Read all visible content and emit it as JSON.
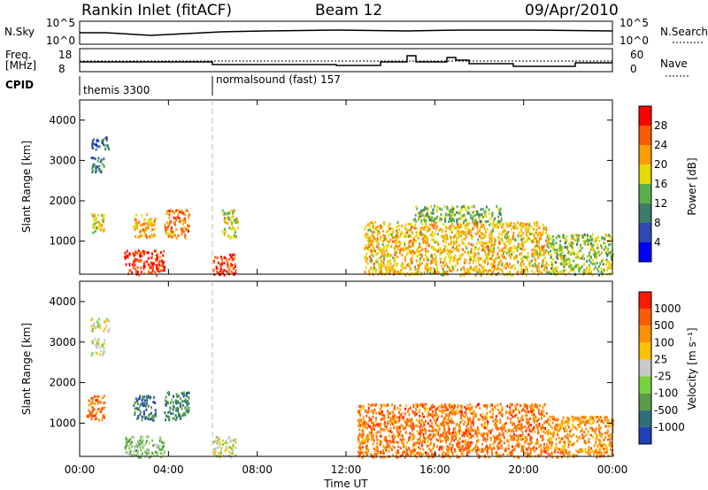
{
  "header": {
    "title": "Rankin Inlet (fitACF)",
    "beam": "Beam 12",
    "date": "09/Apr/2010"
  },
  "top_panels": {
    "nsky_label": "N.Sky",
    "nsearch_label": "N.Search",
    "nsky_ticks": [
      "10^5",
      "10^0"
    ],
    "nsearch_ticks": [
      "10^5",
      "10^0"
    ],
    "freq_label_line1": "Freq.",
    "freq_label_line2": "[MHz]",
    "freq_ticks": [
      "18",
      "8"
    ],
    "nave_label": "Nave",
    "nave_ticks": [
      "60",
      "0"
    ],
    "cpid_label": "CPID",
    "cpid_modes": [
      {
        "label": "themis 3300",
        "start_hour": 0
      },
      {
        "label": "normalsound (fast) 157",
        "start_hour": 6
      }
    ]
  },
  "chart_data": [
    {
      "type": "heatmap",
      "name": "power",
      "xlabel": "Time UT",
      "ylabel": "Slant Range [km]",
      "xlim": [
        0,
        24
      ],
      "ylim": [
        180,
        4500
      ],
      "x_ticks": [
        "00:00",
        "04:00",
        "08:00",
        "12:00",
        "16:00",
        "20:00",
        "00:00"
      ],
      "y_ticks": [
        1000,
        2000,
        3000,
        4000
      ],
      "colorbar_label": "Power [dB]",
      "colorbar_ticks": [
        "4",
        "8",
        "12",
        "16",
        "20",
        "24",
        "28"
      ],
      "colors": [
        "#0000ff",
        "#2b4bb0",
        "#3c7a6a",
        "#58b04a",
        "#e6d800",
        "#ff9d00",
        "#ff5a00",
        "#ff0000"
      ],
      "regions": [
        {
          "t": [
            2.0,
            3.8
          ],
          "r": [
            180,
            800
          ],
          "level": 6.5
        },
        {
          "t": [
            6.0,
            7.0
          ],
          "r": [
            180,
            700
          ],
          "level": 6.5
        },
        {
          "t": [
            0.5,
            1.1
          ],
          "r": [
            1200,
            1700
          ],
          "level": 4
        },
        {
          "t": [
            0.5,
            1.1
          ],
          "r": [
            2700,
            3100
          ],
          "level": 2
        },
        {
          "t": [
            0.5,
            1.3
          ],
          "r": [
            3300,
            3600
          ],
          "level": 1.5
        },
        {
          "t": [
            2.4,
            3.4
          ],
          "r": [
            1100,
            1700
          ],
          "level": 5
        },
        {
          "t": [
            3.8,
            4.9
          ],
          "r": [
            1100,
            1800
          ],
          "level": 5.5
        },
        {
          "t": [
            6.4,
            7.1
          ],
          "r": [
            1100,
            1800
          ],
          "level": 4
        },
        {
          "t": [
            12.8,
            21.0
          ],
          "r": [
            180,
            1500
          ],
          "level": 4.5
        },
        {
          "t": [
            21.0,
            24.0
          ],
          "r": [
            180,
            1200
          ],
          "level": 3.5
        },
        {
          "t": [
            15.0,
            19.0
          ],
          "r": [
            1500,
            1900
          ],
          "level": 3
        }
      ]
    },
    {
      "type": "heatmap",
      "name": "velocity",
      "xlabel": "Time UT",
      "ylabel": "Slant Range [km]",
      "xlim": [
        0,
        24
      ],
      "ylim": [
        180,
        4500
      ],
      "x_ticks": [
        "00:00",
        "04:00",
        "08:00",
        "12:00",
        "16:00",
        "20:00",
        "00:00"
      ],
      "y_ticks": [
        1000,
        2000,
        3000,
        4000
      ],
      "colorbar_label": "Velocity [m s⁻¹]",
      "colorbar_ticks": [
        "1000",
        "500",
        "100",
        "25",
        "-25",
        "-100",
        "-500",
        "-1000"
      ],
      "colors": [
        "#2040b8",
        "#2f6f7a",
        "#5a9a4a",
        "#76d13c",
        "#c8c8c8",
        "#ffc000",
        "#ff9000",
        "#ff5a00",
        "#ff1a00"
      ],
      "regions": [
        {
          "t": [
            0.3,
            1.1
          ],
          "r": [
            1100,
            1700
          ],
          "level": 6.5
        },
        {
          "t": [
            2.4,
            3.4
          ],
          "r": [
            1100,
            1700
          ],
          "level": 1
        },
        {
          "t": [
            3.8,
            4.9
          ],
          "r": [
            1100,
            1800
          ],
          "level": 1.5
        },
        {
          "t": [
            0.5,
            1.3
          ],
          "r": [
            3300,
            3600
          ],
          "level": 4
        },
        {
          "t": [
            0.5,
            1.1
          ],
          "r": [
            2700,
            3100
          ],
          "level": 4
        },
        {
          "t": [
            2.0,
            3.8
          ],
          "r": [
            180,
            700
          ],
          "level": 3
        },
        {
          "t": [
            6.0,
            7.0
          ],
          "r": [
            180,
            700
          ],
          "level": 4
        },
        {
          "t": [
            12.5,
            21.0
          ],
          "r": [
            180,
            1500
          ],
          "level": 6.5
        },
        {
          "t": [
            21.0,
            24.0
          ],
          "r": [
            180,
            1200
          ],
          "level": 6
        }
      ]
    }
  ]
}
